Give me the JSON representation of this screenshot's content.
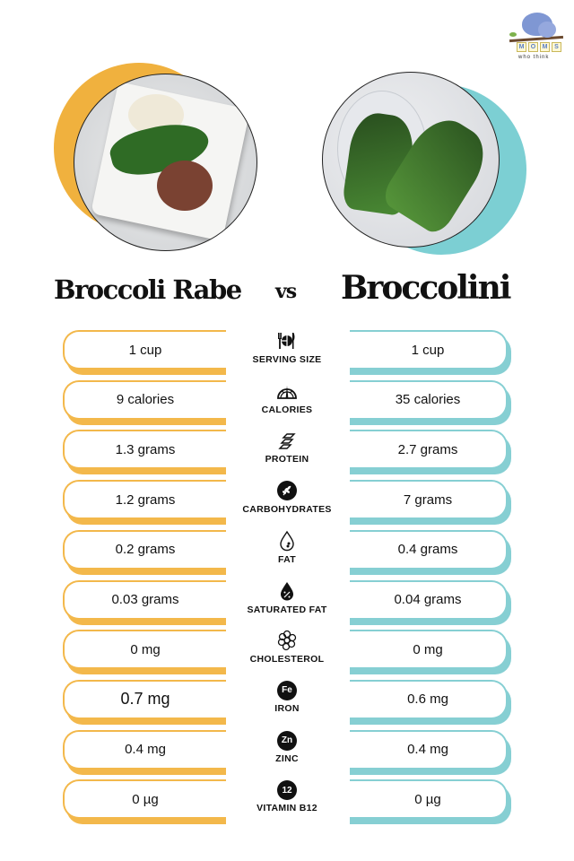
{
  "brand": {
    "logo_letters": [
      "M",
      "O",
      "M",
      "S"
    ],
    "logo_subtitle": "who think"
  },
  "colors": {
    "left_accent": "#f3b84b",
    "right_accent": "#86cfd3",
    "text": "#111111"
  },
  "header": {
    "left_title": "Broccoli Rabe",
    "vs": "vs",
    "right_title": "Broccolini"
  },
  "rows": [
    {
      "label": "SERVING SIZE",
      "icon": "plate-fork-knife-icon",
      "left": "1 cup",
      "right": "1 cup"
    },
    {
      "label": "CALORIES",
      "icon": "gauge-icon",
      "left": "9 calories",
      "right": "35 calories"
    },
    {
      "label": "PROTEIN",
      "icon": "dna-icon",
      "left": "1.3 grams",
      "right": "2.7 grams"
    },
    {
      "label": "CARBOHYDRATES",
      "icon": "wheat-icon",
      "left": "1.2 grams",
      "right": "7 grams"
    },
    {
      "label": "FAT",
      "icon": "drop-icon",
      "left": "0.2 grams",
      "right": "0.4 grams"
    },
    {
      "label": "SATURATED FAT",
      "icon": "percent-drop-icon",
      "left": "0.03 grams",
      "right": "0.04 grams"
    },
    {
      "label": "CHOLESTEROL",
      "icon": "molecule-icon",
      "left": "0 mg",
      "right": "0 mg"
    },
    {
      "label": "IRON",
      "icon": "fe-badge-icon",
      "badge": "Fe",
      "left": "0.7 mg",
      "right": "0.6 mg"
    },
    {
      "label": "ZINC",
      "icon": "zn-badge-icon",
      "badge": "Zn",
      "left": "0.4 mg",
      "right": "0.4 mg"
    },
    {
      "label": "VITAMIN B12",
      "icon": "b12-badge-icon",
      "badge": "12",
      "left": "0 µg",
      "right": "0 µg"
    }
  ]
}
